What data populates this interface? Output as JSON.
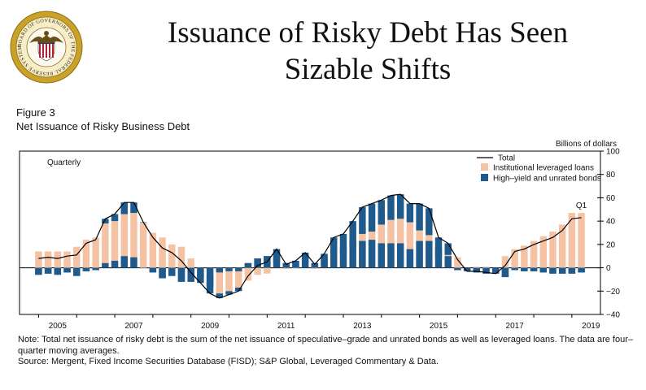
{
  "slide": {
    "title_line1": "Issuance of Risky Debt Has Seen",
    "title_line2": "Sizable Shifts",
    "seal_text": "BOARD OF GOVERNORS OF THE FEDERAL RESERVE SYSTEM",
    "colors": {
      "seal_ring": "#c9a227",
      "seal_shield_blue": "#1f3b73",
      "seal_stripe_red": "#b22234"
    }
  },
  "figure": {
    "label": "Figure 3",
    "subtitle": "Net Issuance of Risky Business Debt"
  },
  "notes": {
    "note": "Note: Total net issuance of risky debt is the sum of the net issuance of speculative–grade and unrated bonds as well as leveraged loans. The data are four–quarter moving averages.",
    "source": "Source: Mergent, Fixed Income Securities Database (FISD); S&P Global, Leveraged Commentary & Data."
  },
  "chart_data": {
    "type": "bar",
    "stacked": true,
    "frequency_label": "Quarterly",
    "ylabel": "Billions of dollars",
    "ylim": [
      -40,
      100
    ],
    "yticks": [
      -40,
      -20,
      0,
      20,
      40,
      60,
      80,
      100
    ],
    "axis_side": "right",
    "xlim": [
      2004.5,
      2019.75
    ],
    "xticks": [
      "2005",
      "2007",
      "2009",
      "2011",
      "2013",
      "2015",
      "2017",
      "2019"
    ],
    "xtick_positions": [
      2005.5,
      2007.5,
      2009.5,
      2011.5,
      2013.5,
      2015.5,
      2017.5,
      2019.5
    ],
    "annotation": "Q1",
    "legend_position": "top-right",
    "grid": false,
    "colors": {
      "loans": "#f5c3a3",
      "bonds": "#1f5a8c",
      "total": "#000000"
    },
    "series": [
      {
        "name": "Total",
        "kind": "line"
      },
      {
        "name": "Institutional leveraged loans",
        "kind": "bar"
      },
      {
        "name": "High–yield and unrated bonds",
        "kind": "bar"
      }
    ],
    "quarters": [
      {
        "x": 2005.0,
        "bonds": -6,
        "loans": 14,
        "total": 8
      },
      {
        "x": 2005.25,
        "bonds": -5,
        "loans": 14,
        "total": 9
      },
      {
        "x": 2005.5,
        "bonds": -6,
        "loans": 14,
        "total": 8
      },
      {
        "x": 2005.75,
        "bonds": -4,
        "loans": 14,
        "total": 10
      },
      {
        "x": 2006.0,
        "bonds": -7,
        "loans": 18,
        "total": 11
      },
      {
        "x": 2006.25,
        "bonds": -3,
        "loans": 24,
        "total": 21
      },
      {
        "x": 2006.5,
        "bonds": -2,
        "loans": 26,
        "total": 24
      },
      {
        "x": 2006.75,
        "bonds": 4,
        "loans": 38,
        "total": 42
      },
      {
        "x": 2007.0,
        "bonds": 6,
        "loans": 40,
        "total": 46
      },
      {
        "x": 2007.25,
        "bonds": 10,
        "loans": 46,
        "total": 56
      },
      {
        "x": 2007.5,
        "bonds": 9,
        "loans": 47,
        "total": 56
      },
      {
        "x": 2007.75,
        "bonds": 0,
        "loans": 39,
        "total": 39
      },
      {
        "x": 2008.0,
        "bonds": -4,
        "loans": 30,
        "total": 26
      },
      {
        "x": 2008.25,
        "bonds": -9,
        "loans": 26,
        "total": 17
      },
      {
        "x": 2008.5,
        "bonds": -7,
        "loans": 20,
        "total": 13
      },
      {
        "x": 2008.75,
        "bonds": -12,
        "loans": 18,
        "total": 6
      },
      {
        "x": 2009.0,
        "bonds": -12,
        "loans": 8,
        "total": -4
      },
      {
        "x": 2009.25,
        "bonds": -8,
        "loans": -5,
        "total": -13
      },
      {
        "x": 2009.5,
        "bonds": -16,
        "loans": -6,
        "total": -22
      },
      {
        "x": 2009.75,
        "bonds": -4,
        "loans": -22,
        "total": -26
      },
      {
        "x": 2010.0,
        "bonds": -3,
        "loans": -20,
        "total": -23
      },
      {
        "x": 2010.25,
        "bonds": -3,
        "loans": -17,
        "total": -20
      },
      {
        "x": 2010.5,
        "bonds": 4,
        "loans": -11,
        "total": -7
      },
      {
        "x": 2010.75,
        "bonds": 8,
        "loans": -6,
        "total": 2
      },
      {
        "x": 2011.0,
        "bonds": 10,
        "loans": -5,
        "total": 5
      },
      {
        "x": 2011.25,
        "bonds": 12,
        "loans": 4,
        "total": 16
      },
      {
        "x": 2011.5,
        "bonds": 4,
        "loans": -1,
        "total": 3
      },
      {
        "x": 2011.75,
        "bonds": 6,
        "loans": 0,
        "total": 6
      },
      {
        "x": 2012.0,
        "bonds": 8,
        "loans": 5,
        "total": 13
      },
      {
        "x": 2012.25,
        "bonds": 4,
        "loans": -1,
        "total": 3
      },
      {
        "x": 2012.5,
        "bonds": 10,
        "loans": 2,
        "total": 12
      },
      {
        "x": 2012.75,
        "bonds": 16,
        "loans": 10,
        "total": 26
      },
      {
        "x": 2013.0,
        "bonds": 17,
        "loans": 12,
        "total": 29
      },
      {
        "x": 2013.25,
        "bonds": 23,
        "loans": 17,
        "total": 40
      },
      {
        "x": 2013.5,
        "bonds": 23,
        "loans": 29,
        "total": 52
      },
      {
        "x": 2013.75,
        "bonds": 24,
        "loans": 31,
        "total": 55
      },
      {
        "x": 2014.0,
        "bonds": 21,
        "loans": 37,
        "total": 58
      },
      {
        "x": 2014.25,
        "bonds": 21,
        "loans": 41,
        "total": 62
      },
      {
        "x": 2014.5,
        "bonds": 21,
        "loans": 42,
        "total": 63
      },
      {
        "x": 2014.75,
        "bonds": 16,
        "loans": 39,
        "total": 55
      },
      {
        "x": 2015.0,
        "bonds": 23,
        "loans": 32,
        "total": 55
      },
      {
        "x": 2015.25,
        "bonds": 23,
        "loans": 28,
        "total": 51
      },
      {
        "x": 2015.5,
        "bonds": 17,
        "loans": 9,
        "total": 26
      },
      {
        "x": 2015.75,
        "bonds": 10,
        "loans": 11,
        "total": 21
      },
      {
        "x": 2016.0,
        "bonds": -2,
        "loans": 9,
        "total": 7
      },
      {
        "x": 2016.25,
        "bonds": -2,
        "loans": -1,
        "total": -3
      },
      {
        "x": 2016.5,
        "bonds": -4,
        "loans": 1,
        "total": -3
      },
      {
        "x": 2016.75,
        "bonds": -5,
        "loans": 1,
        "total": -4
      },
      {
        "x": 2017.0,
        "bonds": -5,
        "loans": 0,
        "total": -5
      },
      {
        "x": 2017.25,
        "bonds": -8,
        "loans": 10,
        "total": 2
      },
      {
        "x": 2017.5,
        "bonds": -2,
        "loans": 16,
        "total": 14
      },
      {
        "x": 2017.75,
        "bonds": -3,
        "loans": 19,
        "total": 16
      },
      {
        "x": 2018.0,
        "bonds": -3,
        "loans": 23,
        "total": 20
      },
      {
        "x": 2018.25,
        "bonds": -4,
        "loans": 27,
        "total": 23
      },
      {
        "x": 2018.5,
        "bonds": -5,
        "loans": 31,
        "total": 26
      },
      {
        "x": 2018.75,
        "bonds": -5,
        "loans": 37,
        "total": 32
      },
      {
        "x": 2019.0,
        "bonds": -5,
        "loans": 47,
        "total": 42
      },
      {
        "x": 2019.25,
        "bonds": -4,
        "loans": 47,
        "total": 43
      }
    ]
  }
}
